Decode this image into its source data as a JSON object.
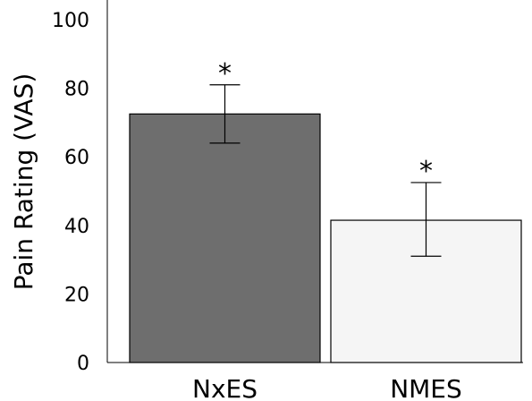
{
  "chart_data": {
    "type": "bar",
    "ylabel": "Pain Rating (VAS)",
    "xlabel": "",
    "ylim": [
      0,
      100
    ],
    "yticks": [
      0,
      20,
      40,
      60,
      80,
      100
    ],
    "categories": [
      "NxES",
      "NMES"
    ],
    "values": [
      72.5,
      41.5
    ],
    "error": [
      [
        64,
        81
      ],
      [
        31,
        52.5
      ]
    ],
    "annotations": [
      "*",
      "*"
    ],
    "colors": [
      "#6e6e6e",
      "#f5f5f5"
    ],
    "grid": false,
    "legend": "none"
  }
}
